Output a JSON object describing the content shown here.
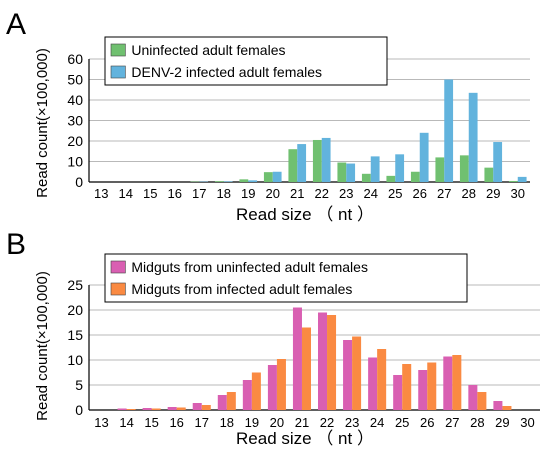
{
  "chart_data": [
    {
      "panel_label": "A",
      "type": "bar",
      "xlabel": "Read size （ nt ）",
      "ylabel": "Read count(×100,000)",
      "ylim": [
        0,
        60
      ],
      "yticks": [
        0,
        10,
        20,
        30,
        40,
        50,
        60
      ],
      "grid": true,
      "legend_position": "top-left",
      "categories": [
        "13",
        "14",
        "15",
        "16",
        "17",
        "18",
        "19",
        "20",
        "21",
        "22",
        "23",
        "24",
        "25",
        "26",
        "27",
        "28",
        "29",
        "30"
      ],
      "series": [
        {
          "name": "Uninfected adult females",
          "color": "#70c070",
          "values": [
            0,
            0,
            0,
            0,
            0.2,
            0.4,
            1.3,
            4.8,
            16,
            20.5,
            9.5,
            4,
            3,
            5,
            12,
            13,
            7,
            0.5
          ]
        },
        {
          "name": "DENV-2 infected adult females",
          "color": "#62b3dd",
          "values": [
            0,
            0,
            0,
            0,
            0.2,
            0.3,
            0.8,
            5,
            18.5,
            21.5,
            9,
            12.5,
            13.5,
            24,
            50,
            43.5,
            19.5,
            2.5
          ]
        }
      ]
    },
    {
      "panel_label": "B",
      "type": "bar",
      "xlabel": "Read size （ nt ）",
      "ylabel": "Read count(×100,000)",
      "ylim": [
        0,
        25
      ],
      "yticks": [
        0,
        5,
        10,
        15,
        20,
        25
      ],
      "grid": true,
      "legend_position": "top-left",
      "categories": [
        "13",
        "14",
        "15",
        "16",
        "17",
        "18",
        "19",
        "20",
        "21",
        "22",
        "23",
        "24",
        "25",
        "26",
        "27",
        "28",
        "29",
        "30"
      ],
      "series": [
        {
          "name": "Midguts from uninfected adult females",
          "color": "#d95fb2",
          "values": [
            0,
            0.3,
            0.4,
            0.6,
            1.4,
            3,
            6,
            9,
            20.5,
            19.5,
            14,
            10.5,
            7,
            8,
            10.7,
            5,
            1.8,
            0
          ]
        },
        {
          "name": "Midguts from infected adult females",
          "color": "#fa8a42",
          "values": [
            0,
            0.2,
            0.3,
            0.5,
            1,
            3.6,
            7.5,
            10.2,
            16.5,
            19,
            14.7,
            12.2,
            9.2,
            9.5,
            11,
            3.6,
            0.8,
            0
          ]
        }
      ]
    }
  ]
}
